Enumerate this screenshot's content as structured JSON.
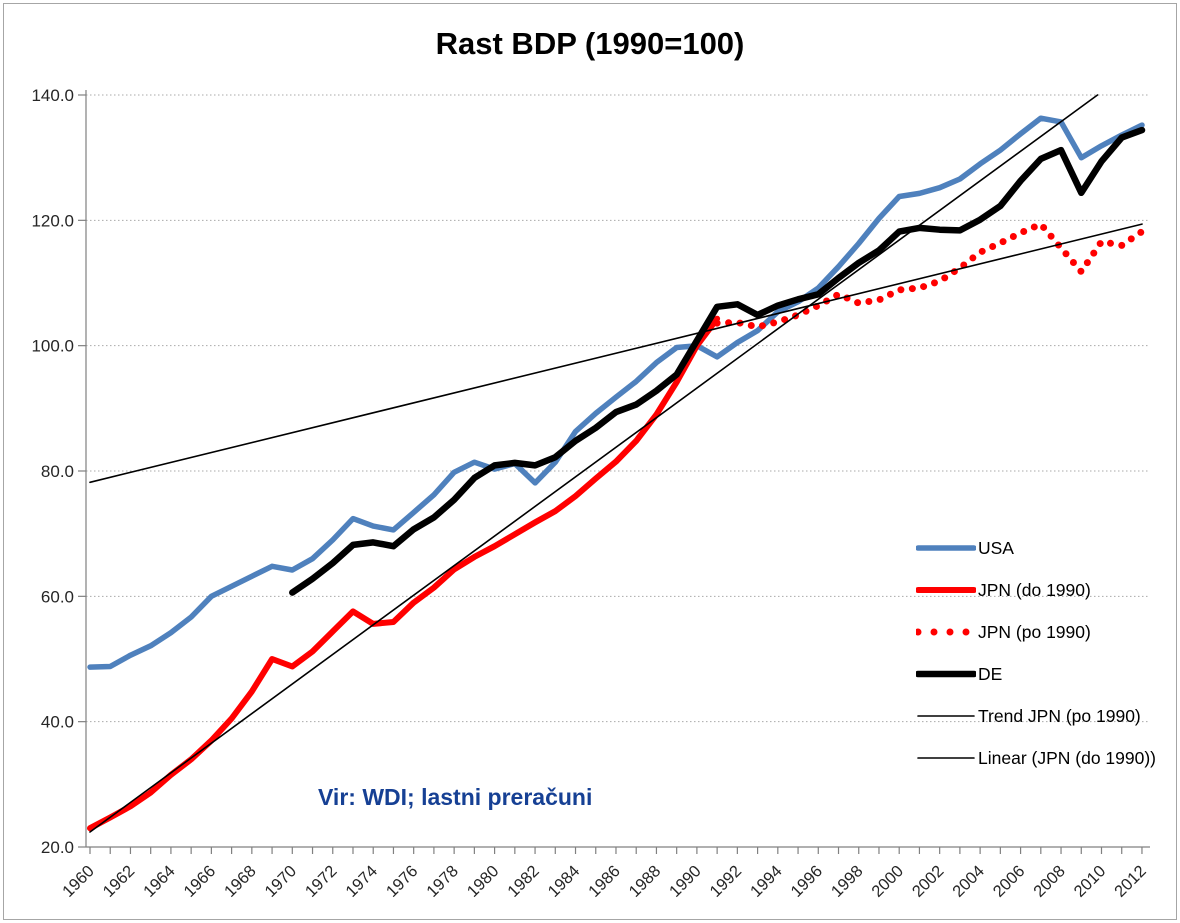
{
  "window": {
    "background": "#FFFFFF",
    "border_color": "#A6A6A6"
  },
  "chart_data": {
    "type": "line",
    "title": "Rast BDP (1990=100)",
    "annotation": {
      "text": "Vir: WDI; lastni preračuni",
      "color": "#164094"
    },
    "axes": {
      "x": {
        "min": 1960,
        "max": 2012,
        "tick_every_years": 1,
        "label_every_years": 2,
        "tick_labels": [
          "1960",
          "1962",
          "1964",
          "1966",
          "1968",
          "1970",
          "1972",
          "1974",
          "1976",
          "1978",
          "1980",
          "1982",
          "1984",
          "1986",
          "1988",
          "1990",
          "1992",
          "1994",
          "1996",
          "1998",
          "2000",
          "2002",
          "2004",
          "2006",
          "2008",
          "2010",
          "2012"
        ]
      },
      "y": {
        "min": 20,
        "max": 140,
        "tick_step": 20,
        "tick_labels": [
          "20.0",
          "40.0",
          "60.0",
          "80.0",
          "100.0",
          "120.0",
          "140.0"
        ]
      },
      "gridlines": {
        "values": [
          40,
          60,
          80,
          100,
          120,
          140
        ],
        "style": "dotted",
        "color": "#A9A9A9"
      },
      "axis_color": "#808080",
      "label_color": "#262626"
    },
    "legend_position": "middle-right",
    "series": [
      {
        "name": "USA",
        "color": "#4F81BD",
        "style": "solid",
        "width": 5.5,
        "data": [
          [
            1960,
            48.7
          ],
          [
            1961,
            48.8
          ],
          [
            1962,
            50.6
          ],
          [
            1963,
            52.1
          ],
          [
            1964,
            54.2
          ],
          [
            1965,
            56.7
          ],
          [
            1966,
            60.0
          ],
          [
            1967,
            61.6
          ],
          [
            1968,
            63.2
          ],
          [
            1969,
            64.8
          ],
          [
            1970,
            64.2
          ],
          [
            1971,
            66.0
          ],
          [
            1972,
            69.0
          ],
          [
            1973,
            72.4
          ],
          [
            1974,
            71.2
          ],
          [
            1975,
            70.6
          ],
          [
            1976,
            73.4
          ],
          [
            1977,
            76.2
          ],
          [
            1978,
            79.8
          ],
          [
            1979,
            81.4
          ],
          [
            1980,
            80.3
          ],
          [
            1981,
            81.2
          ],
          [
            1982,
            78.1
          ],
          [
            1983,
            81.4
          ],
          [
            1984,
            86.3
          ],
          [
            1985,
            89.2
          ],
          [
            1986,
            91.8
          ],
          [
            1987,
            94.3
          ],
          [
            1988,
            97.3
          ],
          [
            1989,
            99.7
          ],
          [
            1990,
            100.0
          ],
          [
            1991,
            98.2
          ],
          [
            1992,
            100.5
          ],
          [
            1993,
            102.4
          ],
          [
            1994,
            105.4
          ],
          [
            1995,
            107.0
          ],
          [
            1996,
            109.2
          ],
          [
            1997,
            112.6
          ],
          [
            1998,
            116.3
          ],
          [
            1999,
            120.3
          ],
          [
            2000,
            123.8
          ],
          [
            2001,
            124.3
          ],
          [
            2002,
            125.2
          ],
          [
            2003,
            126.6
          ],
          [
            2004,
            129.0
          ],
          [
            2005,
            131.2
          ],
          [
            2006,
            133.8
          ],
          [
            2007,
            136.3
          ],
          [
            2008,
            135.7
          ],
          [
            2009,
            130.0
          ],
          [
            2010,
            131.9
          ],
          [
            2011,
            133.6
          ],
          [
            2012,
            135.2
          ]
        ]
      },
      {
        "name": "JPN (do 1990)",
        "color": "#FF0000",
        "style": "solid",
        "width": 6,
        "data": [
          [
            1960,
            23.0
          ],
          [
            1961,
            24.7
          ],
          [
            1962,
            26.5
          ],
          [
            1963,
            28.7
          ],
          [
            1964,
            31.5
          ],
          [
            1965,
            34.0
          ],
          [
            1966,
            37.0
          ],
          [
            1967,
            40.5
          ],
          [
            1968,
            44.8
          ],
          [
            1969,
            50.0
          ],
          [
            1970,
            48.8
          ],
          [
            1971,
            51.2
          ],
          [
            1972,
            54.4
          ],
          [
            1973,
            57.6
          ],
          [
            1974,
            55.6
          ],
          [
            1975,
            55.9
          ],
          [
            1976,
            59.0
          ],
          [
            1977,
            61.4
          ],
          [
            1978,
            64.3
          ],
          [
            1979,
            66.3
          ],
          [
            1980,
            68.0
          ],
          [
            1981,
            69.9
          ],
          [
            1982,
            71.8
          ],
          [
            1983,
            73.6
          ],
          [
            1984,
            76.0
          ],
          [
            1985,
            78.8
          ],
          [
            1986,
            81.5
          ],
          [
            1987,
            84.8
          ],
          [
            1988,
            89.0
          ],
          [
            1989,
            94.2
          ],
          [
            1990,
            100.0
          ],
          [
            1991,
            104.3
          ]
        ]
      },
      {
        "name": "JPN (po 1990)",
        "color": "#FF0000",
        "style": "dotted",
        "width": 7,
        "data": [
          [
            1991,
            103.6
          ],
          [
            1992,
            103.7
          ],
          [
            1993,
            103.0
          ],
          [
            1994,
            103.8
          ],
          [
            1995,
            104.9
          ],
          [
            1996,
            106.4
          ],
          [
            1997,
            108.2
          ],
          [
            1998,
            106.8
          ],
          [
            1999,
            107.3
          ],
          [
            2000,
            108.9
          ],
          [
            2001,
            109.2
          ],
          [
            2002,
            110.3
          ],
          [
            2003,
            112.4
          ],
          [
            2004,
            114.9
          ],
          [
            2005,
            116.4
          ],
          [
            2006,
            118.0
          ],
          [
            2007,
            119.4
          ],
          [
            2008,
            115.6
          ],
          [
            2009,
            111.8
          ],
          [
            2010,
            116.6
          ],
          [
            2011,
            116.0
          ],
          [
            2012,
            118.2
          ]
        ]
      },
      {
        "name": "DE",
        "color": "#000000",
        "style": "solid",
        "width": 6.5,
        "data": [
          [
            1970,
            60.6
          ],
          [
            1971,
            62.8
          ],
          [
            1972,
            65.3
          ],
          [
            1973,
            68.2
          ],
          [
            1974,
            68.6
          ],
          [
            1975,
            68.0
          ],
          [
            1976,
            70.7
          ],
          [
            1977,
            72.6
          ],
          [
            1978,
            75.4
          ],
          [
            1979,
            78.9
          ],
          [
            1980,
            80.9
          ],
          [
            1981,
            81.3
          ],
          [
            1982,
            80.9
          ],
          [
            1983,
            82.2
          ],
          [
            1984,
            84.8
          ],
          [
            1985,
            86.9
          ],
          [
            1986,
            89.4
          ],
          [
            1987,
            90.6
          ],
          [
            1988,
            92.8
          ],
          [
            1989,
            95.4
          ],
          [
            1990,
            100.8
          ],
          [
            1991,
            106.2
          ],
          [
            1992,
            106.6
          ],
          [
            1993,
            104.9
          ],
          [
            1994,
            106.4
          ],
          [
            1995,
            107.4
          ],
          [
            1996,
            108.2
          ],
          [
            1997,
            110.8
          ],
          [
            1998,
            113.2
          ],
          [
            1999,
            115.2
          ],
          [
            2000,
            118.2
          ],
          [
            2001,
            118.8
          ],
          [
            2002,
            118.5
          ],
          [
            2003,
            118.4
          ],
          [
            2004,
            120.1
          ],
          [
            2005,
            122.3
          ],
          [
            2006,
            126.3
          ],
          [
            2007,
            129.8
          ],
          [
            2008,
            131.2
          ],
          [
            2009,
            124.4
          ],
          [
            2010,
            129.4
          ],
          [
            2011,
            133.2
          ],
          [
            2012,
            134.4
          ]
        ]
      },
      {
        "name": "Trend JPN (po 1990)",
        "color": "#000000",
        "style": "thin",
        "width": 1.6,
        "data": [
          [
            1960,
            78.2
          ],
          [
            2012,
            119.4
          ]
        ]
      },
      {
        "name": "Linear (JPN (do 1990))",
        "color": "#000000",
        "style": "thin",
        "width": 1.6,
        "data": [
          [
            1960,
            22.4
          ],
          [
            2009.8,
            140.0
          ]
        ]
      }
    ],
    "draw_order": [
      0,
      1,
      3,
      2,
      4,
      5
    ]
  }
}
